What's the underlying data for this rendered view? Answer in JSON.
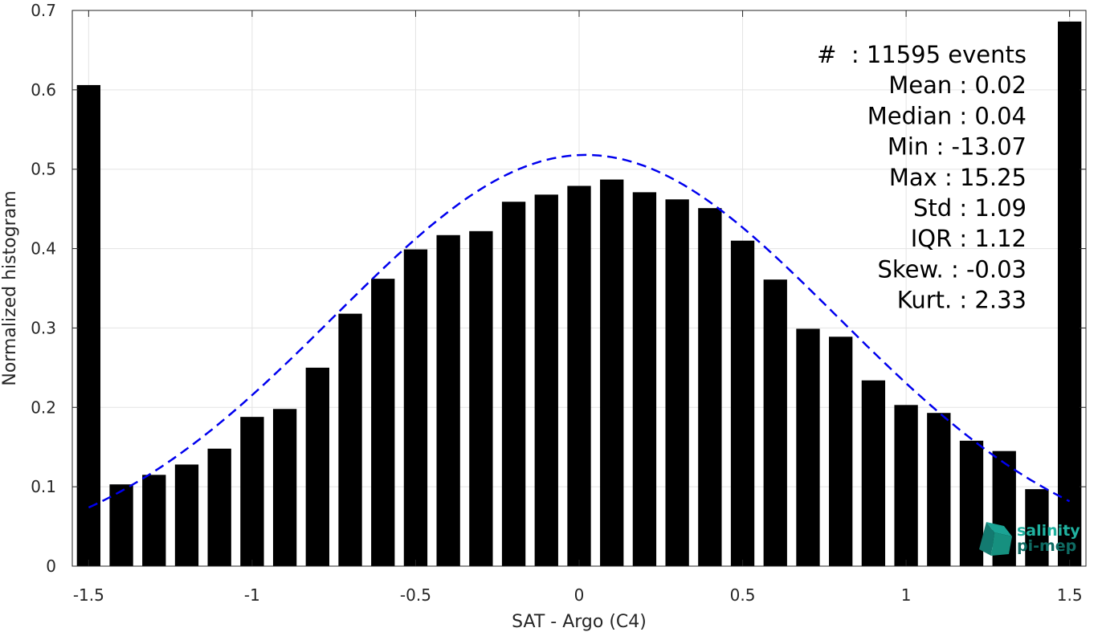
{
  "chart_data": {
    "type": "bar",
    "xlabel": "SAT - Argo (C4)",
    "ylabel": "Normalized histogram",
    "xlim": [
      -1.55,
      1.55
    ],
    "ylim": [
      0,
      0.7
    ],
    "grid": true,
    "xticks": [
      -1.5,
      -1,
      -0.5,
      0,
      0.5,
      1,
      1.5
    ],
    "xtick_labels": [
      "-1.5",
      "-1",
      "-0.5",
      "0",
      "0.5",
      "1",
      "1.5"
    ],
    "yticks": [
      0,
      0.1,
      0.2,
      0.3,
      0.4,
      0.5,
      0.6,
      0.7
    ],
    "ytick_labels": [
      "0",
      "0.1",
      "0.2",
      "0.3",
      "0.4",
      "0.5",
      "0.6",
      "0.7"
    ],
    "bar_color": "#000000",
    "x": [
      -1.5,
      -1.4,
      -1.3,
      -1.2,
      -1.1,
      -1.0,
      -0.9,
      -0.8,
      -0.7,
      -0.6,
      -0.5,
      -0.4,
      -0.3,
      -0.2,
      -0.1,
      0.0,
      0.1,
      0.2,
      0.3,
      0.4,
      0.5,
      0.6,
      0.7,
      0.8,
      0.9,
      1.0,
      1.1,
      1.2,
      1.3,
      1.4,
      1.5
    ],
    "values": [
      0.606,
      0.103,
      0.115,
      0.128,
      0.148,
      0.188,
      0.198,
      0.25,
      0.318,
      0.362,
      0.399,
      0.417,
      0.422,
      0.459,
      0.468,
      0.479,
      0.487,
      0.471,
      0.462,
      0.451,
      0.41,
      0.361,
      0.299,
      0.289,
      0.234,
      0.203,
      0.193,
      0.158,
      0.145,
      0.097,
      0.686
    ],
    "fit_curve": {
      "style": "dashed",
      "color": "#0000ee",
      "mean": 0.02,
      "std": 0.77,
      "peak": 0.518,
      "x_range": [
        -1.5,
        1.5
      ]
    }
  },
  "stats": {
    "lines": [
      "#  : 11595 events",
      "Mean : 0.02",
      "Median : 0.04",
      "Min : -13.07",
      "Max : 15.25",
      "Std : 1.09",
      "IQR : 1.12",
      "Skew. : -0.03",
      "Kurt. : 2.33"
    ]
  },
  "logo": {
    "line1": "salinity",
    "line2": "pi-mep",
    "color_light": "#20b2a0",
    "color_dark": "#0f6b63"
  }
}
